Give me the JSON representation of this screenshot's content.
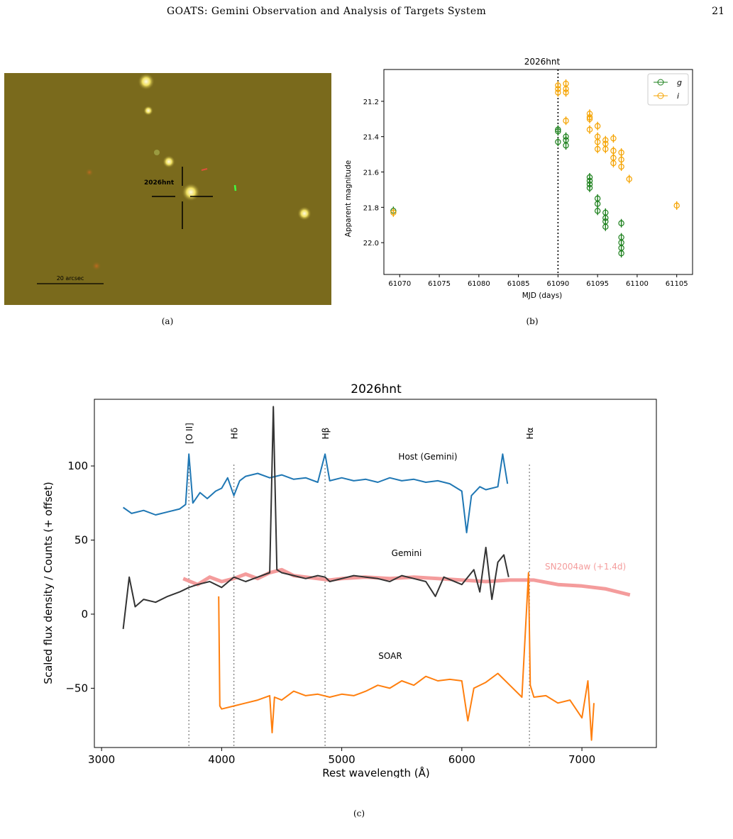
{
  "header": {
    "title": "GOATS: Gemini Observation and Analysis of Targets System",
    "page_number": "21"
  },
  "image_panel": {
    "target_label": "2026hnt",
    "scale_label": "20 arcsec",
    "caption": "(a)",
    "colors": {
      "background": "#7a6a1c",
      "marker": "#000000",
      "star": "#fffbe0"
    }
  },
  "lightcurve_caption": "(b)",
  "spectra_caption": "(c)",
  "spectra_labels": {
    "host": "Host (Gemini)",
    "gemini": "Gemini",
    "soar": "SOAR",
    "template": "SN2004aw (+1.4d)",
    "lines": [
      "[O II]",
      "Hδ",
      "Hβ",
      "Hα"
    ]
  },
  "chart_data": [
    {
      "type": "scatter",
      "title": "2026hnt",
      "xlabel": "MJD (days)",
      "ylabel": "Apparent magnitude",
      "xlim": [
        61068,
        61107
      ],
      "ylim": [
        22.18,
        21.02
      ],
      "y_inverted": true,
      "xticks": [
        61070,
        61075,
        61080,
        61085,
        61090,
        61095,
        61100,
        61105
      ],
      "yticks": [
        21.2,
        21.4,
        21.6,
        21.8,
        22.0
      ],
      "vline_x": 61090,
      "legend_position": "upper-right",
      "series": [
        {
          "name": "g",
          "color": "#1a7f1a",
          "points": [
            [
              61069.2,
              21.82
            ],
            [
              61090.0,
              21.36
            ],
            [
              61090.0,
              21.37
            ],
            [
              61090.0,
              21.43
            ],
            [
              61091.0,
              21.4
            ],
            [
              61091.0,
              21.42
            ],
            [
              61091.0,
              21.45
            ],
            [
              61094.0,
              21.63
            ],
            [
              61094.0,
              21.65
            ],
            [
              61094.0,
              21.67
            ],
            [
              61094.0,
              21.69
            ],
            [
              61095.0,
              21.75
            ],
            [
              61095.0,
              21.78
            ],
            [
              61095.0,
              21.82
            ],
            [
              61096.0,
              21.83
            ],
            [
              61096.0,
              21.86
            ],
            [
              61096.0,
              21.88
            ],
            [
              61096.0,
              21.91
            ],
            [
              61098.0,
              21.89
            ],
            [
              61098.0,
              21.97
            ],
            [
              61098.0,
              22.0
            ],
            [
              61098.0,
              22.03
            ],
            [
              61098.0,
              22.06
            ]
          ]
        },
        {
          "name": "i",
          "color": "#f5a300",
          "points": [
            [
              61069.2,
              21.83
            ],
            [
              61090.0,
              21.11
            ],
            [
              61090.0,
              21.13
            ],
            [
              61090.0,
              21.15
            ],
            [
              61091.0,
              21.1
            ],
            [
              61091.0,
              21.13
            ],
            [
              61091.0,
              21.15
            ],
            [
              61091.0,
              21.31
            ],
            [
              61094.0,
              21.27
            ],
            [
              61094.0,
              21.29
            ],
            [
              61094.0,
              21.3
            ],
            [
              61094.0,
              21.36
            ],
            [
              61095.0,
              21.34
            ],
            [
              61095.0,
              21.4
            ],
            [
              61095.0,
              21.43
            ],
            [
              61095.0,
              21.47
            ],
            [
              61096.0,
              21.42
            ],
            [
              61096.0,
              21.44
            ],
            [
              61096.0,
              21.47
            ],
            [
              61097.0,
              21.41
            ],
            [
              61097.0,
              21.48
            ],
            [
              61097.0,
              21.52
            ],
            [
              61097.0,
              21.55
            ],
            [
              61098.0,
              21.49
            ],
            [
              61098.0,
              21.53
            ],
            [
              61098.0,
              21.57
            ],
            [
              61099.0,
              21.64
            ],
            [
              61105.0,
              21.79
            ]
          ]
        }
      ]
    },
    {
      "type": "line",
      "title": "2026hnt",
      "xlabel": "Rest wavelength (Å)",
      "ylabel": "Scaled flux density / Counts (+ offset)",
      "xlim": [
        2940,
        7620
      ],
      "ylim": [
        -90,
        145
      ],
      "xticks": [
        3000,
        4000,
        5000,
        6000,
        7000
      ],
      "yticks": [
        -50,
        0,
        50,
        100
      ],
      "line_markers": [
        {
          "label": "[O II]",
          "x": 3727
        },
        {
          "label": "Hδ",
          "x": 4102
        },
        {
          "label": "Hβ",
          "x": 4861
        },
        {
          "label": "Hα",
          "x": 6563
        }
      ],
      "series": [
        {
          "name": "Host (Gemini)",
          "color": "#1f77b4",
          "x": [
            3180,
            3250,
            3350,
            3450,
            3550,
            3650,
            3700,
            3727,
            3760,
            3820,
            3880,
            3950,
            4000,
            4050,
            4102,
            4150,
            4200,
            4300,
            4400,
            4500,
            4600,
            4700,
            4800,
            4861,
            4900,
            5000,
            5100,
            5200,
            5300,
            5400,
            5500,
            5600,
            5700,
            5800,
            5900,
            6000,
            6040,
            6080,
            6150,
            6200,
            6300,
            6340,
            6380
          ],
          "y": [
            72,
            68,
            70,
            67,
            69,
            71,
            74,
            108,
            75,
            82,
            78,
            83,
            85,
            92,
            80,
            90,
            93,
            95,
            92,
            94,
            91,
            92,
            89,
            108,
            90,
            92,
            90,
            91,
            89,
            92,
            90,
            91,
            89,
            90,
            88,
            83,
            55,
            80,
            86,
            84,
            86,
            108,
            88
          ]
        },
        {
          "name": "Gemini",
          "color": "#333333",
          "x": [
            3180,
            3230,
            3280,
            3350,
            3450,
            3550,
            3650,
            3727,
            3800,
            3900,
            4000,
            4102,
            4200,
            4300,
            4400,
            4430,
            4460,
            4500,
            4600,
            4700,
            4800,
            4861,
            4900,
            5000,
            5100,
            5200,
            5300,
            5400,
            5500,
            5600,
            5700,
            5780,
            5850,
            6000,
            6100,
            6150,
            6200,
            6250,
            6300,
            6350,
            6390
          ],
          "y": [
            -10,
            25,
            5,
            10,
            8,
            12,
            15,
            18,
            20,
            22,
            18,
            25,
            22,
            25,
            28,
            140,
            30,
            28,
            26,
            24,
            26,
            25,
            22,
            24,
            26,
            25,
            24,
            22,
            26,
            24,
            22,
            12,
            25,
            20,
            30,
            15,
            45,
            10,
            35,
            40,
            25
          ]
        },
        {
          "name": "SN2004aw (+1.4d)",
          "color": "#f49c9c",
          "x": [
            3680,
            3800,
            3900,
            4000,
            4100,
            4200,
            4300,
            4400,
            4500,
            4600,
            4700,
            4800,
            4900,
            5000,
            5200,
            5400,
            5600,
            5800,
            6000,
            6200,
            6400,
            6600,
            6800,
            7000,
            7200,
            7400
          ],
          "y": [
            24,
            20,
            25,
            22,
            24,
            27,
            24,
            28,
            30,
            26,
            25,
            24,
            23,
            24,
            25,
            24,
            25,
            24,
            23,
            22,
            23,
            23,
            20,
            19,
            17,
            13
          ]
        },
        {
          "name": "SOAR",
          "color": "#ff7f0e",
          "x": [
            3975,
            3985,
            4000,
            4100,
            4200,
            4300,
            4400,
            4420,
            4440,
            4500,
            4600,
            4700,
            4800,
            4900,
            5000,
            5100,
            5200,
            5300,
            5400,
            5500,
            5600,
            5700,
            5800,
            5900,
            6000,
            6050,
            6100,
            6200,
            6300,
            6400,
            6500,
            6555,
            6570,
            6600,
            6700,
            6800,
            6900,
            7000,
            7050,
            7080,
            7100
          ],
          "y": [
            12,
            -62,
            -64,
            -62,
            -60,
            -58,
            -55,
            -80,
            -56,
            -58,
            -52,
            -55,
            -54,
            -56,
            -54,
            -55,
            -52,
            -48,
            -50,
            -45,
            -48,
            -42,
            -45,
            -44,
            -45,
            -72,
            -50,
            -46,
            -40,
            -48,
            -56,
            28,
            -48,
            -56,
            -55,
            -60,
            -58,
            -70,
            -45,
            -85,
            -60
          ]
        }
      ]
    }
  ]
}
